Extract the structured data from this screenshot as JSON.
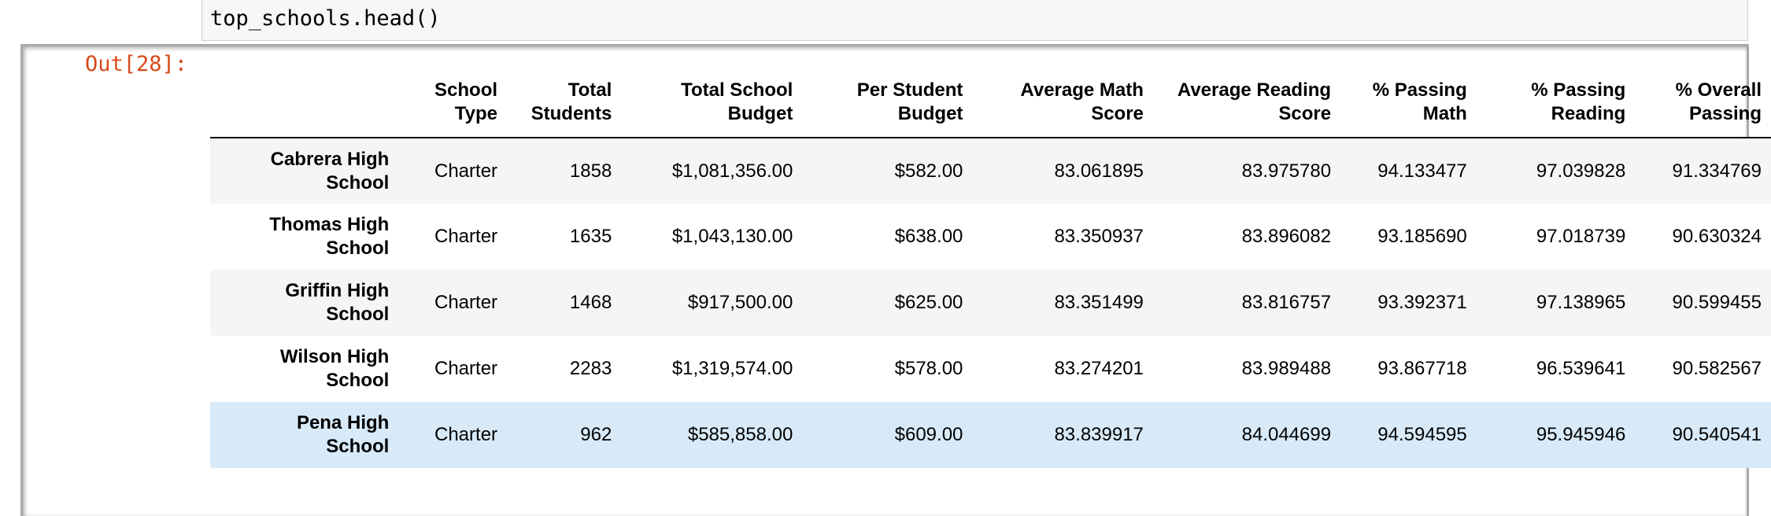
{
  "input": {
    "code": "top_schools.head()"
  },
  "output": {
    "prompt": "Out[28]:",
    "columns": [
      {
        "line1": "",
        "line2": ""
      },
      {
        "line1": "School",
        "line2": "Type"
      },
      {
        "line1": "Total",
        "line2": "Students"
      },
      {
        "line1": "Total School",
        "line2": "Budget"
      },
      {
        "line1": "Per Student",
        "line2": "Budget"
      },
      {
        "line1": "Average Math",
        "line2": "Score"
      },
      {
        "line1": "Average Reading",
        "line2": "Score"
      },
      {
        "line1": "% Passing",
        "line2": "Math"
      },
      {
        "line1": "% Passing",
        "line2": "Reading"
      },
      {
        "line1": "% Overall",
        "line2": "Passing"
      }
    ],
    "rows": [
      {
        "name1": "Cabrera High",
        "name2": "School",
        "values": [
          "Charter",
          "1858",
          "$1,081,356.00",
          "$582.00",
          "83.061895",
          "83.975780",
          "94.133477",
          "97.039828",
          "91.334769"
        ]
      },
      {
        "name1": "Thomas High",
        "name2": "School",
        "values": [
          "Charter",
          "1635",
          "$1,043,130.00",
          "$638.00",
          "83.350937",
          "83.896082",
          "93.185690",
          "97.018739",
          "90.630324"
        ]
      },
      {
        "name1": "Griffin High",
        "name2": "School",
        "values": [
          "Charter",
          "1468",
          "$917,500.00",
          "$625.00",
          "83.351499",
          "83.816757",
          "93.392371",
          "97.138965",
          "90.599455"
        ]
      },
      {
        "name1": "Wilson High",
        "name2": "School",
        "values": [
          "Charter",
          "2283",
          "$1,319,574.00",
          "$578.00",
          "83.274201",
          "83.989488",
          "93.867718",
          "96.539641",
          "90.582567"
        ]
      },
      {
        "name1": "Pena High",
        "name2": "School",
        "values": [
          "Charter",
          "962",
          "$585,858.00",
          "$609.00",
          "83.839917",
          "84.044699",
          "94.594595",
          "95.945946",
          "90.540541"
        ]
      }
    ],
    "highlighted_row": 4
  },
  "colors": {
    "prompt_out": "#d84a1b",
    "row_stripe": "#f5f5f5",
    "row_hover": "#d8eaf8",
    "input_bg": "#f7f7f7"
  }
}
